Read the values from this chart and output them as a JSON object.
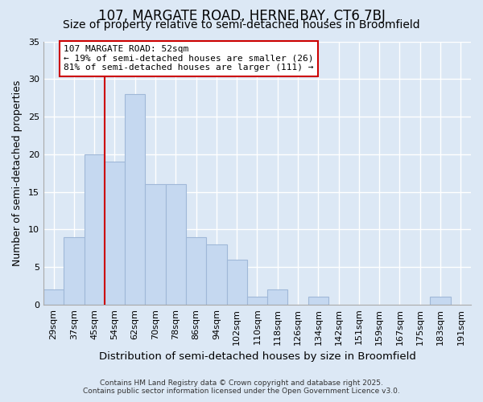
{
  "title": "107, MARGATE ROAD, HERNE BAY, CT6 7BJ",
  "subtitle": "Size of property relative to semi-detached houses in Broomfield",
  "xlabel": "Distribution of semi-detached houses by size in Broomfield",
  "ylabel": "Number of semi-detached properties",
  "categories": [
    "29sqm",
    "37sqm",
    "45sqm",
    "54sqm",
    "62sqm",
    "70sqm",
    "78sqm",
    "86sqm",
    "94sqm",
    "102sqm",
    "110sqm",
    "118sqm",
    "126sqm",
    "134sqm",
    "142sqm",
    "151sqm",
    "159sqm",
    "167sqm",
    "175sqm",
    "183sqm",
    "191sqm"
  ],
  "values": [
    2,
    9,
    20,
    19,
    28,
    16,
    16,
    9,
    8,
    6,
    1,
    2,
    0,
    1,
    0,
    0,
    0,
    0,
    0,
    1,
    0
  ],
  "bar_color": "#c5d8f0",
  "bar_edge_color": "#a0b8d8",
  "highlight_bar_index": 3,
  "highlight_line_color": "#cc0000",
  "property_label": "107 MARGATE ROAD: 52sqm",
  "smaller_text": "← 19% of semi-detached houses are smaller (26)",
  "larger_text": "81% of semi-detached houses are larger (111) →",
  "annotation_box_color": "#cc0000",
  "footer1": "Contains HM Land Registry data © Crown copyright and database right 2025.",
  "footer2": "Contains public sector information licensed under the Open Government Licence v3.0.",
  "ylim": [
    0,
    35
  ],
  "yticks": [
    0,
    5,
    10,
    15,
    20,
    25,
    30,
    35
  ],
  "background_color": "#dce8f5",
  "plot_bg_color": "#dce8f5",
  "title_fontsize": 12,
  "subtitle_fontsize": 10,
  "tick_fontsize": 8,
  "annotation_fontsize": 8
}
